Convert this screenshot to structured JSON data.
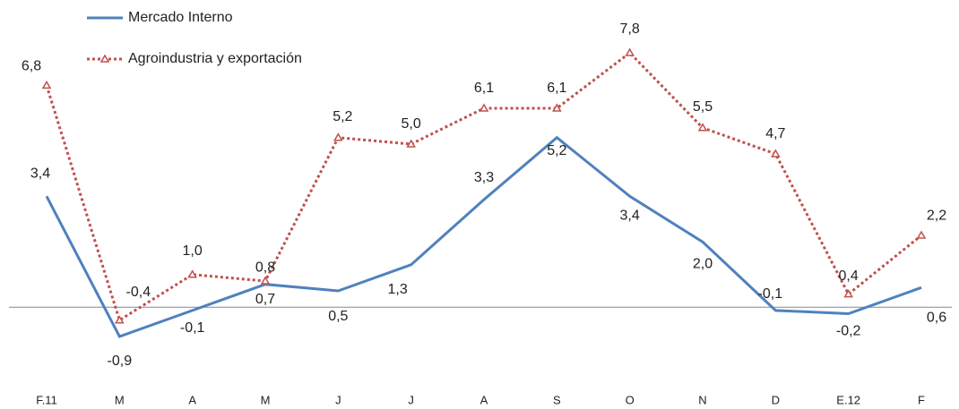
{
  "chart_data": {
    "type": "line",
    "categories": [
      "F.11",
      "M",
      "A",
      "M",
      "J",
      "J",
      "A",
      "S",
      "O",
      "N",
      "D",
      "E.12",
      "F"
    ],
    "series": [
      {
        "name": "Mercado Interno",
        "color": "#4f81bd",
        "values": [
          3.4,
          -0.9,
          -0.1,
          0.7,
          0.5,
          1.3,
          3.3,
          5.2,
          3.4,
          2.0,
          -0.1,
          -0.2,
          0.6
        ],
        "value_labels": [
          "3,4",
          "-0,9",
          "-0,1",
          "0,7",
          "0,5",
          "1,3",
          "3,3",
          "5,2",
          "3,4",
          "2,0",
          "-0,1",
          "-0,2",
          "0,6"
        ]
      },
      {
        "name": "Agroindustria y exportación",
        "color": "#c0504d",
        "values": [
          6.8,
          -0.4,
          1.0,
          0.8,
          5.2,
          5.0,
          6.1,
          6.1,
          7.8,
          5.5,
          4.7,
          0.4,
          2.2
        ],
        "value_labels": [
          "6,8",
          "-0,4",
          "1,0",
          "0,8",
          "5,2",
          "5,0",
          "6,1",
          "6,1",
          "7,8",
          "5,5",
          "4,7",
          "0,4",
          "2,2"
        ]
      }
    ]
  }
}
